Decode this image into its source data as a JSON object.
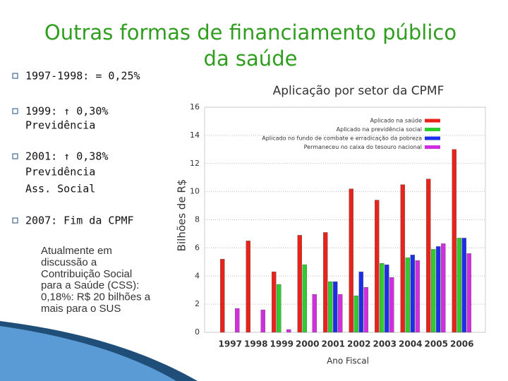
{
  "slide": {
    "title": [
      "Outras formas de financiamento público",
      "da saúde"
    ],
    "bullets": [
      {
        "lines": [
          "1997-1998: = 0,25%"
        ]
      },
      {
        "lines": [
          "1999: ↑ 0,30%",
          "Previdência"
        ]
      },
      {
        "lines": [
          "2001: ↑ 0,38%",
          "Previdência",
          "Ass. Social"
        ]
      },
      {
        "lines": [
          "2007: Fim da CPMF"
        ]
      }
    ],
    "sub_bullet": {
      "lines": [
        "Atualmente em",
        "discussão a",
        "Contribuição Social",
        "para a Saúde (CSS):",
        "0,18%: R$ 20 bilhões a",
        "mais para o SUS"
      ]
    }
  },
  "chart_data": {
    "type": "bar",
    "title": "Aplicação por setor da CPMF",
    "x_label": "Ano Fiscal",
    "y_label": "Bilhões de R$",
    "categories": [
      "1997",
      "1998",
      "1999",
      "2000",
      "2001",
      "2002",
      "2003",
      "2004",
      "2005",
      "2006"
    ],
    "series": [
      {
        "name": "Aplicado na saúde",
        "color": "#e8231c",
        "values": [
          5.2,
          6.5,
          4.3,
          6.9,
          7.1,
          10.2,
          9.4,
          10.5,
          10.9,
          13.0
        ]
      },
      {
        "name": "Aplicado na previdência social",
        "color": "#2ecc2e",
        "values": [
          null,
          null,
          3.4,
          4.8,
          3.6,
          2.6,
          4.9,
          5.3,
          5.9,
          6.7
        ]
      },
      {
        "name": "Aplicado no fundo de combate e erradicação da pobreza",
        "color": "#1c2ee8",
        "values": [
          null,
          null,
          null,
          null,
          3.6,
          4.3,
          4.8,
          5.5,
          6.1,
          6.7
        ]
      },
      {
        "name": "Permaneceu no caixa do tesouro nacional",
        "color": "#d22ee0",
        "values": [
          1.7,
          1.6,
          0.2,
          2.7,
          2.7,
          3.2,
          3.9,
          5.1,
          6.3,
          5.6
        ]
      }
    ],
    "ylim": [
      0,
      16
    ],
    "yticks": [
      0,
      2,
      4,
      6,
      8,
      10,
      12,
      14,
      16
    ],
    "grid": true,
    "legend": "top-right"
  }
}
